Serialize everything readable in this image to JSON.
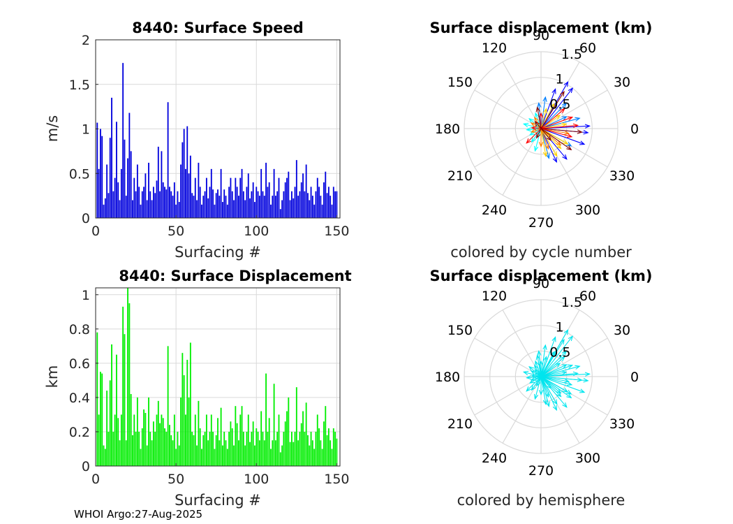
{
  "footer": "WHOI Argo:27-Aug-2025",
  "colors": {
    "speed_bar": "#0000dd",
    "disp_bar": "#00ee00",
    "hemisphere_arrow": "#00e5ee",
    "grid": "#d9d9d9",
    "axis": "#262626"
  },
  "chart_data": [
    {
      "id": "speed",
      "type": "bar",
      "title": "8440: Surface Speed",
      "xlabel": "Surfacing #",
      "ylabel": "m/s",
      "xlim": [
        0,
        152
      ],
      "ylim": [
        0,
        2
      ],
      "xticks": [
        0,
        50,
        100,
        150
      ],
      "xtick_labels": [
        "0",
        "50",
        "100",
        "150"
      ],
      "yticks": [
        0,
        0.5,
        1,
        1.5,
        2
      ],
      "ytick_labels": [
        "0",
        "0.5",
        "1",
        "1.5",
        "2"
      ],
      "grid": true,
      "x": [
        1,
        2,
        3,
        4,
        5,
        6,
        7,
        8,
        9,
        10,
        11,
        12,
        13,
        14,
        15,
        16,
        17,
        18,
        19,
        20,
        21,
        22,
        23,
        24,
        25,
        26,
        27,
        28,
        29,
        30,
        31,
        32,
        33,
        34,
        35,
        36,
        37,
        38,
        39,
        40,
        41,
        42,
        43,
        44,
        45,
        46,
        47,
        48,
        49,
        50,
        51,
        52,
        53,
        54,
        55,
        56,
        57,
        58,
        59,
        60,
        61,
        62,
        63,
        64,
        65,
        66,
        67,
        68,
        69,
        70,
        71,
        72,
        73,
        74,
        75,
        76,
        77,
        78,
        79,
        80,
        81,
        82,
        83,
        84,
        85,
        86,
        87,
        88,
        89,
        90,
        91,
        92,
        93,
        94,
        95,
        96,
        97,
        98,
        99,
        100,
        101,
        102,
        103,
        104,
        105,
        106,
        107,
        108,
        109,
        110,
        111,
        112,
        113,
        114,
        115,
        116,
        117,
        118,
        119,
        120,
        121,
        122,
        123,
        124,
        125,
        126,
        127,
        128,
        129,
        130,
        131,
        132,
        133,
        134,
        135,
        136,
        137,
        138,
        139,
        140,
        141,
        142,
        143,
        144,
        145,
        146,
        147,
        148,
        149,
        150
      ],
      "values": [
        1.07,
        0.55,
        1.0,
        0.92,
        0.15,
        0.22,
        0.6,
        0.28,
        0.9,
        1.35,
        0.3,
        0.45,
        1.08,
        0.4,
        0.2,
        0.55,
        1.74,
        0.88,
        0.25,
        0.67,
        1.18,
        0.75,
        0.2,
        0.45,
        0.3,
        0.6,
        0.35,
        0.15,
        0.3,
        0.35,
        0.5,
        0.2,
        0.62,
        0.3,
        0.2,
        0.35,
        0.28,
        0.42,
        0.8,
        0.3,
        0.75,
        0.4,
        0.35,
        0.32,
        1.3,
        0.35,
        0.3,
        0.25,
        0.4,
        0.15,
        0.3,
        0.18,
        0.6,
        0.85,
        1.0,
        0.55,
        1.03,
        0.5,
        0.7,
        0.28,
        0.25,
        0.45,
        0.2,
        0.62,
        0.35,
        0.15,
        0.25,
        0.3,
        0.45,
        0.22,
        0.35,
        0.55,
        0.32,
        0.15,
        0.28,
        0.32,
        0.25,
        0.55,
        0.18,
        0.32,
        0.25,
        0.15,
        0.35,
        0.45,
        0.3,
        0.2,
        0.45,
        0.35,
        0.25,
        0.45,
        0.55,
        0.3,
        0.2,
        0.35,
        0.5,
        0.22,
        0.3,
        0.4,
        0.18,
        0.35,
        0.3,
        0.25,
        0.55,
        0.3,
        0.25,
        0.62,
        0.35,
        0.4,
        0.15,
        0.25,
        0.55,
        0.25,
        0.3,
        0.45,
        0.1,
        0.2,
        0.3,
        0.4,
        0.45,
        0.52,
        0.2,
        0.3,
        0.22,
        0.35,
        0.65,
        0.25,
        0.3,
        0.4,
        0.5,
        0.3,
        0.6,
        0.28,
        0.2,
        0.35,
        0.25,
        0.15,
        0.3,
        0.45,
        0.35,
        0.25,
        0.15,
        0.4,
        0.52,
        0.28,
        0.35,
        0.25,
        0.15,
        0.35,
        0.3,
        0.3
      ]
    },
    {
      "id": "displacement",
      "type": "bar",
      "title": "8440: Surface Displacement",
      "xlabel": "Surfacing #",
      "ylabel": "km",
      "xlim": [
        0,
        152
      ],
      "ylim": [
        0,
        1.04
      ],
      "xticks": [
        0,
        50,
        100,
        150
      ],
      "xtick_labels": [
        "0",
        "50",
        "100",
        "150"
      ],
      "yticks": [
        0,
        0.2,
        0.4,
        0.6,
        0.8,
        1
      ],
      "ytick_labels": [
        "0",
        "0.2",
        "0.4",
        "0.6",
        "0.8",
        "1"
      ],
      "grid": true,
      "x": [
        1,
        2,
        3,
        4,
        5,
        6,
        7,
        8,
        9,
        10,
        11,
        12,
        13,
        14,
        15,
        16,
        17,
        18,
        19,
        20,
        21,
        22,
        23,
        24,
        25,
        26,
        27,
        28,
        29,
        30,
        31,
        32,
        33,
        34,
        35,
        36,
        37,
        38,
        39,
        40,
        41,
        42,
        43,
        44,
        45,
        46,
        47,
        48,
        49,
        50,
        51,
        52,
        53,
        54,
        55,
        56,
        57,
        58,
        59,
        60,
        61,
        62,
        63,
        64,
        65,
        66,
        67,
        68,
        69,
        70,
        71,
        72,
        73,
        74,
        75,
        76,
        77,
        78,
        79,
        80,
        81,
        82,
        83,
        84,
        85,
        86,
        87,
        88,
        89,
        90,
        91,
        92,
        93,
        94,
        95,
        96,
        97,
        98,
        99,
        100,
        101,
        102,
        103,
        104,
        105,
        106,
        107,
        108,
        109,
        110,
        111,
        112,
        113,
        114,
        115,
        116,
        117,
        118,
        119,
        120,
        121,
        122,
        123,
        124,
        125,
        126,
        127,
        128,
        129,
        130,
        131,
        132,
        133,
        134,
        135,
        136,
        137,
        138,
        139,
        140,
        141,
        142,
        143,
        144,
        145,
        146,
        147,
        148,
        149,
        150
      ],
      "values": [
        0.78,
        0.3,
        0.55,
        0.54,
        0.12,
        0.1,
        0.44,
        0.2,
        0.5,
        0.71,
        0.2,
        0.3,
        0.65,
        0.28,
        0.15,
        0.3,
        0.93,
        0.77,
        0.15,
        1.04,
        0.95,
        0.42,
        0.18,
        0.3,
        0.2,
        0.4,
        0.2,
        0.1,
        0.22,
        0.33,
        0.31,
        0.12,
        0.4,
        0.2,
        0.15,
        0.26,
        0.2,
        0.3,
        0.38,
        0.25,
        0.3,
        0.28,
        0.22,
        0.2,
        0.7,
        0.24,
        0.18,
        0.15,
        0.3,
        0.1,
        0.2,
        0.12,
        0.4,
        0.66,
        0.53,
        0.3,
        0.62,
        0.4,
        0.72,
        0.2,
        0.18,
        0.3,
        0.12,
        0.38,
        0.22,
        0.1,
        0.18,
        0.2,
        0.3,
        0.15,
        0.2,
        0.3,
        0.2,
        0.1,
        0.18,
        0.28,
        0.15,
        0.34,
        0.12,
        0.2,
        0.15,
        0.1,
        0.2,
        0.26,
        0.22,
        0.12,
        0.35,
        0.25,
        0.15,
        0.3,
        0.35,
        0.2,
        0.12,
        0.2,
        0.3,
        0.14,
        0.2,
        0.26,
        0.12,
        0.22,
        0.2,
        0.15,
        0.32,
        0.2,
        0.15,
        0.54,
        0.2,
        0.28,
        0.1,
        0.15,
        0.48,
        0.15,
        0.2,
        0.3,
        0.08,
        0.12,
        0.2,
        0.26,
        0.32,
        0.4,
        0.14,
        0.2,
        0.14,
        0.2,
        0.46,
        0.15,
        0.2,
        0.25,
        0.32,
        0.2,
        0.37,
        0.18,
        0.12,
        0.2,
        0.15,
        0.1,
        0.2,
        0.3,
        0.22,
        0.15,
        0.1,
        0.26,
        0.35,
        0.18,
        0.22,
        0.15,
        0.1,
        0.22,
        0.2,
        0.16
      ]
    },
    {
      "id": "polar-cycle",
      "type": "polar-vector",
      "title": "Surface displacement (km)",
      "caption": "colored by cycle number",
      "rlim": [
        0,
        1.5
      ],
      "rticks": [
        0.5,
        1,
        1.5
      ],
      "rtick_labels": [
        "0.5",
        "1",
        "1.5"
      ],
      "theta_labels": [
        "0",
        "30",
        "60",
        "90",
        "120",
        "150",
        "180",
        "210",
        "240",
        "270",
        "300",
        "330"
      ],
      "color_by": "cycle",
      "colormap": [
        "#0000ff",
        "#0080ff",
        "#00ffff",
        "#ffd200",
        "#ff7f00",
        "#ff0000",
        "#800000"
      ],
      "vectors": [
        {
          "angle": 60,
          "r": 1.05
        },
        {
          "angle": 52,
          "r": 1.0
        },
        {
          "angle": 70,
          "r": 0.82
        },
        {
          "angle": 3,
          "r": 0.95
        },
        {
          "angle": 355,
          "r": 0.92
        },
        {
          "angle": -20,
          "r": 0.9
        },
        {
          "angle": -50,
          "r": 0.78
        },
        {
          "angle": -65,
          "r": 0.72
        },
        {
          "angle": -75,
          "r": 0.6
        },
        {
          "angle": -30,
          "r": 0.68
        },
        {
          "angle": 15,
          "r": 0.78
        },
        {
          "angle": 25,
          "r": 0.55
        },
        {
          "angle": 45,
          "r": 0.7
        },
        {
          "angle": 82,
          "r": 0.62
        },
        {
          "angle": 95,
          "r": 0.5
        },
        {
          "angle": 110,
          "r": 0.32
        },
        {
          "angle": 140,
          "r": 0.3
        },
        {
          "angle": 165,
          "r": 0.35
        },
        {
          "angle": 185,
          "r": 0.28
        },
        {
          "angle": 210,
          "r": 0.25
        },
        {
          "angle": 235,
          "r": 0.32
        },
        {
          "angle": 255,
          "r": 0.45
        },
        {
          "angle": 280,
          "r": 0.55
        },
        {
          "angle": 300,
          "r": 0.62
        },
        {
          "angle": 315,
          "r": 0.55
        },
        {
          "angle": 330,
          "r": 0.6
        },
        {
          "angle": 10,
          "r": 0.5
        },
        {
          "angle": 35,
          "r": 0.45
        },
        {
          "angle": 62,
          "r": 0.55
        },
        {
          "angle": 75,
          "r": 0.4
        },
        {
          "angle": -10,
          "r": 0.55
        },
        {
          "angle": -40,
          "r": 0.5
        },
        {
          "angle": 200,
          "r": 0.2
        },
        {
          "angle": 150,
          "r": 0.22
        },
        {
          "angle": 120,
          "r": 0.25
        },
        {
          "angle": 270,
          "r": 0.35
        },
        {
          "angle": 290,
          "r": 0.42
        },
        {
          "angle": 20,
          "r": 0.65
        },
        {
          "angle": 40,
          "r": 0.6
        },
        {
          "angle": 5,
          "r": 0.72
        },
        {
          "angle": 345,
          "r": 0.62
        },
        {
          "angle": 90,
          "r": 0.3
        },
        {
          "angle": 175,
          "r": 0.18
        },
        {
          "angle": 225,
          "r": 0.4
        },
        {
          "angle": 245,
          "r": 0.2
        },
        {
          "angle": 100,
          "r": 0.42
        },
        {
          "angle": 130,
          "r": 0.18
        },
        {
          "angle": 310,
          "r": 0.3
        },
        {
          "angle": 58,
          "r": 0.85
        },
        {
          "angle": -5,
          "r": 0.8
        },
        {
          "angle": -35,
          "r": 0.72
        }
      ]
    },
    {
      "id": "polar-hemisphere",
      "type": "polar-vector",
      "title": "Surface displacement (km)",
      "caption": "colored by hemisphere",
      "rlim": [
        0,
        1.5
      ],
      "rticks": [
        0.5,
        1,
        1.5
      ],
      "rtick_labels": [
        "0.5",
        "1",
        "1.5"
      ],
      "theta_labels": [
        "0",
        "30",
        "60",
        "90",
        "120",
        "150",
        "180",
        "210",
        "240",
        "270",
        "300",
        "330"
      ],
      "color_by": "hemisphere",
      "series": [
        {
          "name": "hemisphere",
          "color": "#00e5ee"
        }
      ],
      "vectors_ref": "polar-cycle"
    }
  ]
}
